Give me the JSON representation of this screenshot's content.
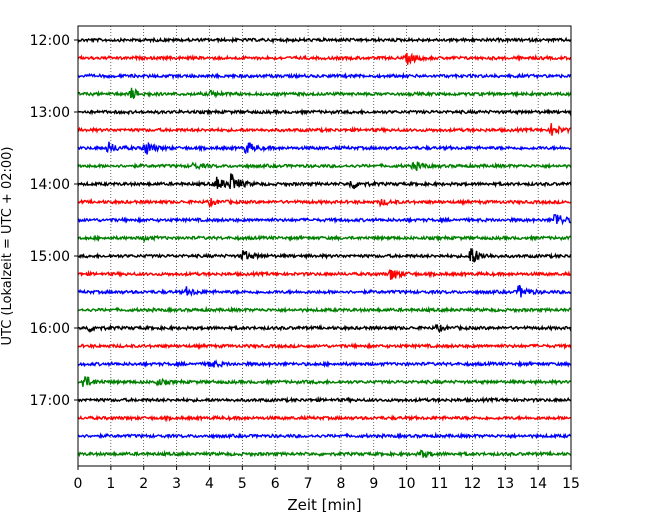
{
  "chart_data": {
    "type": "line",
    "title": "",
    "xlabel": "Zeit  [min]",
    "ylabel": "UTC (Lokalzeit = UTC + 02:00)",
    "xlim": [
      0,
      15
    ],
    "x_ticks": [
      0,
      1,
      2,
      3,
      4,
      5,
      6,
      7,
      8,
      9,
      10,
      11,
      12,
      13,
      14,
      15
    ],
    "y_ticks": [
      "12:00",
      "13:00",
      "14:00",
      "15:00",
      "16:00",
      "17:00"
    ],
    "grid": "vertical-dotted",
    "legend": "none",
    "trace_interval_min": 15,
    "trace_colors": [
      "#000000",
      "#ff0000",
      "#0000ff",
      "#008000"
    ],
    "series": [
      {
        "start": "12:00",
        "color": "#000000",
        "events": []
      },
      {
        "start": "12:15",
        "color": "#ff0000",
        "events": [
          {
            "t": 10.0,
            "amp": 6
          }
        ]
      },
      {
        "start": "12:30",
        "color": "#0000ff",
        "events": []
      },
      {
        "start": "12:45",
        "color": "#008000",
        "events": [
          {
            "t": 1.6,
            "amp": 6
          },
          {
            "t": 4.0,
            "amp": 3
          }
        ]
      },
      {
        "start": "13:00",
        "color": "#000000",
        "events": []
      },
      {
        "start": "13:15",
        "color": "#ff0000",
        "events": [
          {
            "t": 14.4,
            "amp": 6
          }
        ]
      },
      {
        "start": "13:30",
        "color": "#0000ff",
        "events": [
          {
            "t": 0.9,
            "amp": 6
          },
          {
            "t": 2.0,
            "amp": 9
          },
          {
            "t": 5.1,
            "amp": 7
          }
        ]
      },
      {
        "start": "13:45",
        "color": "#008000",
        "events": [
          {
            "t": 3.5,
            "amp": 3
          },
          {
            "t": 10.2,
            "amp": 5
          }
        ]
      },
      {
        "start": "14:00",
        "color": "#000000",
        "events": [
          {
            "t": 4.2,
            "amp": 7
          },
          {
            "t": 4.65,
            "amp": 10
          },
          {
            "t": 8.3,
            "amp": 6
          }
        ]
      },
      {
        "start": "14:15",
        "color": "#ff0000",
        "events": [
          {
            "t": 4.0,
            "amp": 3
          },
          {
            "t": 9.2,
            "amp": 3
          }
        ]
      },
      {
        "start": "14:30",
        "color": "#0000ff",
        "events": [
          {
            "t": 14.5,
            "amp": 9
          }
        ]
      },
      {
        "start": "14:45",
        "color": "#008000",
        "events": [
          {
            "t": 2.0,
            "amp": 2
          }
        ]
      },
      {
        "start": "15:00",
        "color": "#000000",
        "events": [
          {
            "t": 5.0,
            "amp": 6
          },
          {
            "t": 11.9,
            "amp": 12
          }
        ]
      },
      {
        "start": "15:15",
        "color": "#ff0000",
        "events": [
          {
            "t": 9.5,
            "amp": 7
          }
        ]
      },
      {
        "start": "15:30",
        "color": "#0000ff",
        "events": [
          {
            "t": 3.3,
            "amp": 4
          },
          {
            "t": 13.4,
            "amp": 7
          }
        ]
      },
      {
        "start": "15:45",
        "color": "#008000",
        "events": []
      },
      {
        "start": "16:00",
        "color": "#000000",
        "events": [
          {
            "t": 0.3,
            "amp": 4
          },
          {
            "t": 10.9,
            "amp": 3
          }
        ]
      },
      {
        "start": "16:15",
        "color": "#ff0000",
        "events": []
      },
      {
        "start": "16:30",
        "color": "#0000ff",
        "events": [
          {
            "t": 4.0,
            "amp": 4
          }
        ]
      },
      {
        "start": "16:45",
        "color": "#008000",
        "events": [
          {
            "t": 0.15,
            "amp": 7
          },
          {
            "t": 2.4,
            "amp": 3
          }
        ]
      },
      {
        "start": "17:00",
        "color": "#000000",
        "events": []
      },
      {
        "start": "17:15",
        "color": "#ff0000",
        "events": []
      },
      {
        "start": "17:30",
        "color": "#0000ff",
        "events": []
      },
      {
        "start": "17:45",
        "color": "#008000",
        "events": [
          {
            "t": 10.4,
            "amp": 4
          }
        ]
      }
    ]
  }
}
